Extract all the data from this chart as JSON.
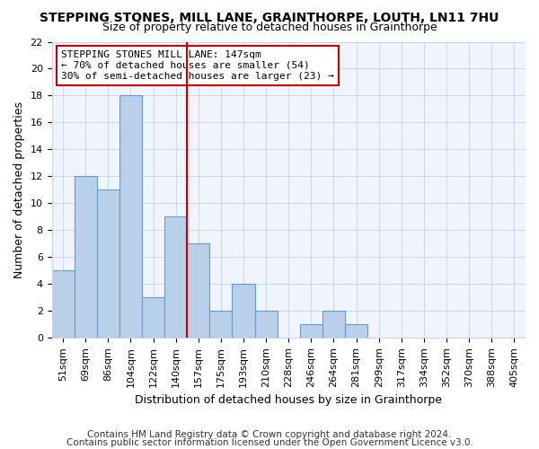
{
  "title": "STEPPING STONES, MILL LANE, GRAINTHORPE, LOUTH, LN11 7HU",
  "subtitle": "Size of property relative to detached houses in Grainthorpe",
  "xlabel": "Distribution of detached houses by size in Grainthorpe",
  "ylabel": "Number of detached properties",
  "categories": [
    "51sqm",
    "69sqm",
    "86sqm",
    "104sqm",
    "122sqm",
    "140sqm",
    "157sqm",
    "175sqm",
    "193sqm",
    "210sqm",
    "228sqm",
    "246sqm",
    "264sqm",
    "281sqm",
    "299sqm",
    "317sqm",
    "334sqm",
    "352sqm",
    "370sqm",
    "388sqm",
    "405sqm"
  ],
  "values": [
    5,
    12,
    11,
    18,
    3,
    9,
    7,
    2,
    4,
    2,
    0,
    1,
    2,
    1,
    0,
    0,
    0,
    0,
    0,
    0,
    0
  ],
  "bar_color": "#b8d0ea",
  "bar_edge_color": "#6699cc",
  "vline_x_idx": 5.5,
  "vline_color": "#cc0000",
  "annotation_text": "STEPPING STONES MILL LANE: 147sqm\n← 70% of detached houses are smaller (54)\n30% of semi-detached houses are larger (23) →",
  "annotation_box_facecolor": "#ffffff",
  "annotation_box_edgecolor": "#cc0000",
  "ylim": [
    0,
    22
  ],
  "yticks": [
    0,
    2,
    4,
    6,
    8,
    10,
    12,
    14,
    16,
    18,
    20,
    22
  ],
  "bg_color": "#ffffff",
  "plot_bg_color": "#f0f4fc",
  "title_fontsize": 10,
  "subtitle_fontsize": 9,
  "xlabel_fontsize": 9,
  "ylabel_fontsize": 9,
  "tick_fontsize": 8,
  "annot_fontsize": 8,
  "footer_fontsize": 7.5,
  "footer1": "Contains HM Land Registry data © Crown copyright and database right 2024.",
  "footer2": "Contains public sector information licensed under the Open Government Licence v3.0."
}
